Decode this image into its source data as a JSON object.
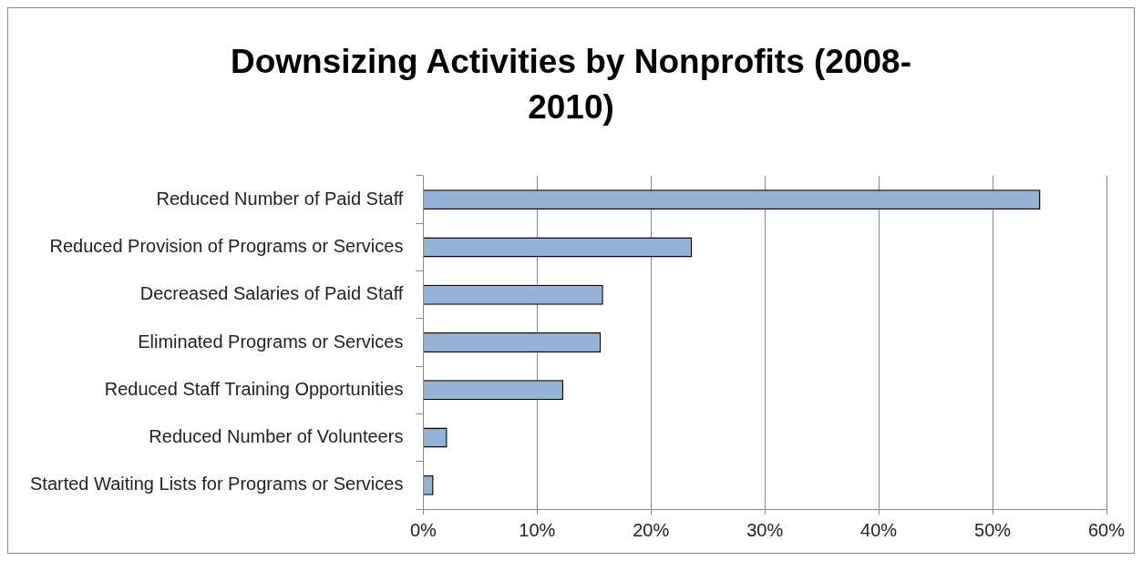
{
  "chart_data": {
    "type": "bar",
    "orientation": "horizontal",
    "title": "Downsizing Activities by Nonprofits (2008-2010)",
    "categories": [
      "Reduced Number of Paid Staff",
      "Reduced Provision of Programs or Services",
      "Decreased Salaries of Paid Staff",
      "Eliminated Programs or Services",
      "Reduced Staff Training Opportunities",
      "Reduced Number of Volunteers",
      "Started Waiting Lists for Programs or Services"
    ],
    "values": [
      54.2,
      23.6,
      15.8,
      15.6,
      12.3,
      2.1,
      0.9
    ],
    "color": "#95b3d7",
    "xlim": [
      0,
      60
    ],
    "xticks": [
      {
        "value": 0,
        "label": "0%"
      },
      {
        "value": 10,
        "label": "10%"
      },
      {
        "value": 20,
        "label": "20%"
      },
      {
        "value": 30,
        "label": "30%"
      },
      {
        "value": 40,
        "label": "40%"
      },
      {
        "value": 50,
        "label": "50%"
      },
      {
        "value": 60,
        "label": "60%"
      }
    ],
    "grid": "x",
    "legend": false
  }
}
